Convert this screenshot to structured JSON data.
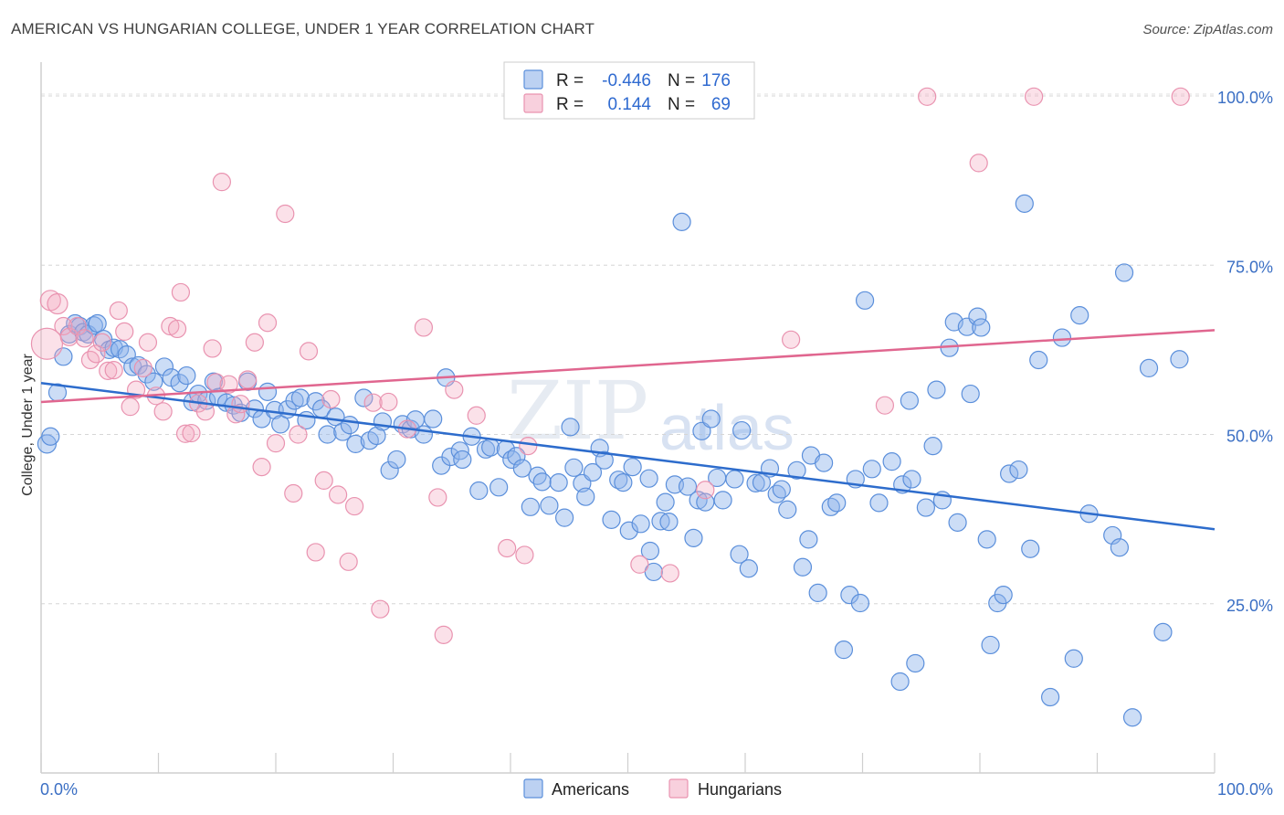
{
  "title": "AMERICAN VS HUNGARIAN COLLEGE, UNDER 1 YEAR CORRELATION CHART",
  "source": "Source: ZipAtlas.com",
  "watermark": {
    "zip": "ZIP",
    "atlas": "atlas"
  },
  "legend": {
    "rows": [
      {
        "r_label": "R =",
        "r_value": "-0.446",
        "n_label": "N =",
        "n_value": "176",
        "color": "#8fb3ea"
      },
      {
        "r_label": "R =",
        "r_value": "0.144",
        "n_label": "N =",
        "n_value": "69",
        "color": "#f3a9c1"
      }
    ]
  },
  "bottom_legend": [
    {
      "label": "Americans",
      "color": "#8fb3ea"
    },
    {
      "label": "Hungarians",
      "color": "#f3a9c1"
    }
  ],
  "colors": {
    "americans": "#4a86d8",
    "americans_line": "#2d6ccc",
    "hungarians": "#e58aa9",
    "hungarians_line": "#e0668f",
    "tick": "#3b6fc4"
  },
  "chart_data": {
    "type": "scatter",
    "title": "AMERICAN VS HUNGARIAN COLLEGE, UNDER 1 YEAR CORRELATION CHART",
    "xlabel": "",
    "ylabel": "College, Under 1 year",
    "xlim": [
      0,
      100
    ],
    "ylim": [
      0,
      105
    ],
    "x_ticks": [
      "0.0%",
      "100.0%"
    ],
    "y_ticks": [
      {
        "value": 25,
        "label": "25.0%"
      },
      {
        "value": 50,
        "label": "50.0%"
      },
      {
        "value": 75,
        "label": "75.0%"
      },
      {
        "value": 100,
        "label": "100.0%"
      }
    ],
    "grid": true,
    "legend_position": "top-center",
    "trendlines": [
      {
        "series": "Americans",
        "x": [
          0,
          100
        ],
        "y": [
          57.6,
          36.0
        ]
      },
      {
        "series": "Hungarians",
        "x": [
          0,
          100
        ],
        "y": [
          54.8,
          65.4
        ]
      }
    ],
    "series": [
      {
        "name": "Americans",
        "r": -0.446,
        "n": 176,
        "points": [
          [
            0.5,
            48.6
          ],
          [
            0.8,
            49.7
          ],
          [
            1.4,
            56.2
          ],
          [
            1.9,
            61.5
          ],
          [
            2.4,
            64.8
          ],
          [
            2.9,
            66.4
          ],
          [
            3.3,
            66.0
          ],
          [
            3.6,
            65.1
          ],
          [
            4.0,
            64.8
          ],
          [
            4.5,
            66.1
          ],
          [
            4.8,
            66.4
          ],
          [
            5.3,
            64.1
          ],
          [
            5.8,
            62.5
          ],
          [
            6.2,
            62.8
          ],
          [
            6.7,
            62.6
          ],
          [
            7.3,
            61.8
          ],
          [
            7.8,
            60.0
          ],
          [
            8.3,
            60.2
          ],
          [
            9.0,
            58.9
          ],
          [
            9.6,
            57.8
          ],
          [
            10.5,
            60.0
          ],
          [
            11.1,
            58.4
          ],
          [
            11.8,
            57.6
          ],
          [
            12.4,
            58.7
          ],
          [
            12.9,
            54.8
          ],
          [
            13.4,
            56.0
          ],
          [
            14.1,
            55.0
          ],
          [
            14.7,
            57.8
          ],
          [
            15.1,
            55.5
          ],
          [
            15.8,
            54.7
          ],
          [
            16.4,
            54.3
          ],
          [
            17.0,
            53.2
          ],
          [
            17.6,
            57.8
          ],
          [
            18.2,
            53.8
          ],
          [
            18.8,
            52.3
          ],
          [
            19.3,
            56.3
          ],
          [
            19.9,
            53.6
          ],
          [
            20.4,
            51.5
          ],
          [
            21.0,
            53.7
          ],
          [
            21.6,
            55.0
          ],
          [
            22.1,
            55.4
          ],
          [
            22.6,
            52.1
          ],
          [
            23.4,
            54.9
          ],
          [
            23.9,
            53.8
          ],
          [
            24.4,
            50.0
          ],
          [
            25.1,
            52.6
          ],
          [
            25.7,
            50.4
          ],
          [
            26.3,
            51.4
          ],
          [
            26.8,
            48.6
          ],
          [
            27.5,
            55.4
          ],
          [
            28.0,
            49.1
          ],
          [
            28.6,
            49.8
          ],
          [
            29.1,
            51.9
          ],
          [
            29.7,
            44.7
          ],
          [
            30.3,
            46.3
          ],
          [
            30.8,
            51.5
          ],
          [
            31.5,
            50.8
          ],
          [
            31.9,
            52.2
          ],
          [
            32.6,
            50.0
          ],
          [
            33.4,
            52.3
          ],
          [
            34.1,
            45.4
          ],
          [
            34.5,
            58.4
          ],
          [
            34.9,
            46.7
          ],
          [
            35.7,
            47.6
          ],
          [
            35.9,
            46.3
          ],
          [
            36.7,
            49.7
          ],
          [
            37.3,
            41.7
          ],
          [
            37.9,
            47.8
          ],
          [
            38.3,
            48.1
          ],
          [
            39.0,
            42.2
          ],
          [
            39.6,
            47.8
          ],
          [
            40.1,
            46.3
          ],
          [
            40.5,
            46.8
          ],
          [
            41.0,
            45.0
          ],
          [
            41.7,
            39.3
          ],
          [
            42.3,
            43.9
          ],
          [
            42.7,
            43.0
          ],
          [
            43.3,
            39.5
          ],
          [
            44.1,
            42.9
          ],
          [
            44.6,
            37.7
          ],
          [
            45.1,
            51.1
          ],
          [
            45.4,
            45.1
          ],
          [
            46.1,
            42.8
          ],
          [
            46.4,
            40.8
          ],
          [
            47.0,
            44.4
          ],
          [
            47.6,
            48.0
          ],
          [
            48.0,
            46.2
          ],
          [
            48.6,
            37.4
          ],
          [
            49.2,
            43.3
          ],
          [
            49.6,
            42.9
          ],
          [
            50.1,
            35.8
          ],
          [
            50.4,
            45.2
          ],
          [
            51.1,
            36.8
          ],
          [
            51.8,
            43.5
          ],
          [
            51.9,
            32.8
          ],
          [
            52.2,
            29.7
          ],
          [
            52.8,
            37.2
          ],
          [
            53.2,
            40.0
          ],
          [
            53.5,
            37.1
          ],
          [
            54.0,
            42.6
          ],
          [
            54.6,
            81.4
          ],
          [
            55.1,
            42.3
          ],
          [
            55.6,
            34.7
          ],
          [
            56.0,
            40.3
          ],
          [
            56.3,
            50.5
          ],
          [
            56.6,
            40.0
          ],
          [
            57.1,
            52.3
          ],
          [
            57.6,
            43.6
          ],
          [
            58.1,
            40.3
          ],
          [
            59.1,
            43.4
          ],
          [
            59.5,
            32.3
          ],
          [
            59.7,
            50.6
          ],
          [
            60.3,
            30.2
          ],
          [
            60.9,
            42.8
          ],
          [
            61.4,
            42.9
          ],
          [
            62.1,
            45.0
          ],
          [
            62.7,
            41.2
          ],
          [
            63.1,
            41.9
          ],
          [
            63.6,
            38.9
          ],
          [
            64.4,
            44.7
          ],
          [
            64.9,
            30.4
          ],
          [
            65.4,
            34.5
          ],
          [
            65.6,
            46.9
          ],
          [
            66.2,
            26.6
          ],
          [
            66.7,
            45.8
          ],
          [
            67.3,
            39.3
          ],
          [
            67.8,
            39.9
          ],
          [
            68.4,
            18.2
          ],
          [
            68.9,
            26.3
          ],
          [
            69.4,
            43.4
          ],
          [
            69.8,
            25.1
          ],
          [
            70.2,
            69.8
          ],
          [
            70.8,
            44.9
          ],
          [
            71.4,
            39.9
          ],
          [
            72.5,
            46.0
          ],
          [
            73.2,
            13.5
          ],
          [
            73.4,
            42.6
          ],
          [
            74.0,
            55.0
          ],
          [
            74.2,
            43.4
          ],
          [
            74.5,
            16.2
          ],
          [
            75.4,
            39.2
          ],
          [
            76.0,
            48.3
          ],
          [
            76.3,
            56.6
          ],
          [
            76.8,
            40.3
          ],
          [
            77.4,
            62.8
          ],
          [
            77.8,
            66.6
          ],
          [
            78.1,
            37.0
          ],
          [
            78.9,
            65.9
          ],
          [
            79.2,
            56.0
          ],
          [
            79.8,
            67.4
          ],
          [
            80.1,
            65.8
          ],
          [
            80.6,
            34.5
          ],
          [
            80.9,
            18.9
          ],
          [
            81.5,
            25.1
          ],
          [
            82.0,
            26.3
          ],
          [
            82.5,
            44.2
          ],
          [
            83.3,
            44.8
          ],
          [
            83.8,
            84.1
          ],
          [
            84.3,
            33.1
          ],
          [
            85.0,
            61.0
          ],
          [
            86.0,
            11.2
          ],
          [
            87.0,
            64.3
          ],
          [
            88.0,
            16.9
          ],
          [
            88.5,
            67.6
          ],
          [
            89.3,
            38.3
          ],
          [
            91.3,
            35.1
          ],
          [
            91.9,
            33.3
          ],
          [
            92.3,
            73.9
          ],
          [
            93.0,
            8.2
          ],
          [
            94.4,
            59.8
          ],
          [
            95.6,
            20.8
          ],
          [
            97.0,
            61.1
          ]
        ]
      },
      {
        "name": "Hungarians",
        "r": 0.144,
        "n": 69,
        "points": [
          [
            0.5,
            63.4
          ],
          [
            0.8,
            69.8
          ],
          [
            1.4,
            69.3
          ],
          [
            1.9,
            66.0
          ],
          [
            2.4,
            64.4
          ],
          [
            3.1,
            66.0
          ],
          [
            3.7,
            64.2
          ],
          [
            4.2,
            61.0
          ],
          [
            4.7,
            61.9
          ],
          [
            5.2,
            63.6
          ],
          [
            5.7,
            59.4
          ],
          [
            6.2,
            59.5
          ],
          [
            6.6,
            68.3
          ],
          [
            7.1,
            65.2
          ],
          [
            7.6,
            54.1
          ],
          [
            8.1,
            56.6
          ],
          [
            8.7,
            59.8
          ],
          [
            9.1,
            63.6
          ],
          [
            9.8,
            55.7
          ],
          [
            10.4,
            53.4
          ],
          [
            11.0,
            66.0
          ],
          [
            11.6,
            65.6
          ],
          [
            11.9,
            71.0
          ],
          [
            12.3,
            50.1
          ],
          [
            12.8,
            50.2
          ],
          [
            13.4,
            54.6
          ],
          [
            14.0,
            53.4
          ],
          [
            14.6,
            62.7
          ],
          [
            14.9,
            57.7
          ],
          [
            15.4,
            87.3
          ],
          [
            16.0,
            57.4
          ],
          [
            16.6,
            53.0
          ],
          [
            17.0,
            54.5
          ],
          [
            17.6,
            58.1
          ],
          [
            18.2,
            63.6
          ],
          [
            18.8,
            45.2
          ],
          [
            19.3,
            66.5
          ],
          [
            20.0,
            48.7
          ],
          [
            20.8,
            82.6
          ],
          [
            21.5,
            41.3
          ],
          [
            21.9,
            50.0
          ],
          [
            22.8,
            62.3
          ],
          [
            23.4,
            32.6
          ],
          [
            24.1,
            43.2
          ],
          [
            24.7,
            55.2
          ],
          [
            25.3,
            41.1
          ],
          [
            26.2,
            31.2
          ],
          [
            26.7,
            39.4
          ],
          [
            28.3,
            54.7
          ],
          [
            28.9,
            24.2
          ],
          [
            29.6,
            54.8
          ],
          [
            31.2,
            50.8
          ],
          [
            32.6,
            65.8
          ],
          [
            33.8,
            40.7
          ],
          [
            34.3,
            20.4
          ],
          [
            35.2,
            56.6
          ],
          [
            37.1,
            52.8
          ],
          [
            39.7,
            33.2
          ],
          [
            41.2,
            32.2
          ],
          [
            41.5,
            48.3
          ],
          [
            51.0,
            30.8
          ],
          [
            53.6,
            29.5
          ],
          [
            56.6,
            41.8
          ],
          [
            63.9,
            64.0
          ],
          [
            71.9,
            54.3
          ],
          [
            75.5,
            99.9
          ],
          [
            79.9,
            90.1
          ],
          [
            84.6,
            99.9
          ],
          [
            97.1,
            99.9
          ]
        ]
      }
    ]
  }
}
